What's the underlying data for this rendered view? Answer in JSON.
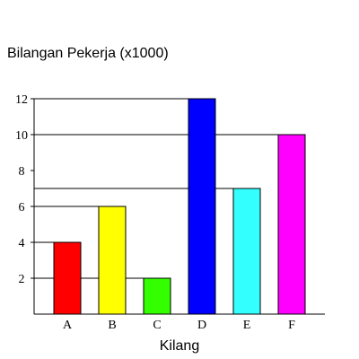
{
  "chart_data": {
    "type": "bar",
    "title": "",
    "ylabel": "Bilangan Pekerja (x1000)",
    "xlabel": "Kilang",
    "categories": [
      "A",
      "B",
      "C",
      "D",
      "E",
      "F"
    ],
    "values": [
      4,
      6,
      2,
      12,
      7,
      10
    ],
    "colors": [
      "#ff0000",
      "#ffff00",
      "#33ff00",
      "#0000ff",
      "#33ffff",
      "#ff00ff"
    ],
    "yticks": [
      2,
      4,
      6,
      8,
      10,
      12
    ],
    "ylim": [
      0,
      13.5
    ],
    "grid": "level lines drawn at each bar height"
  }
}
